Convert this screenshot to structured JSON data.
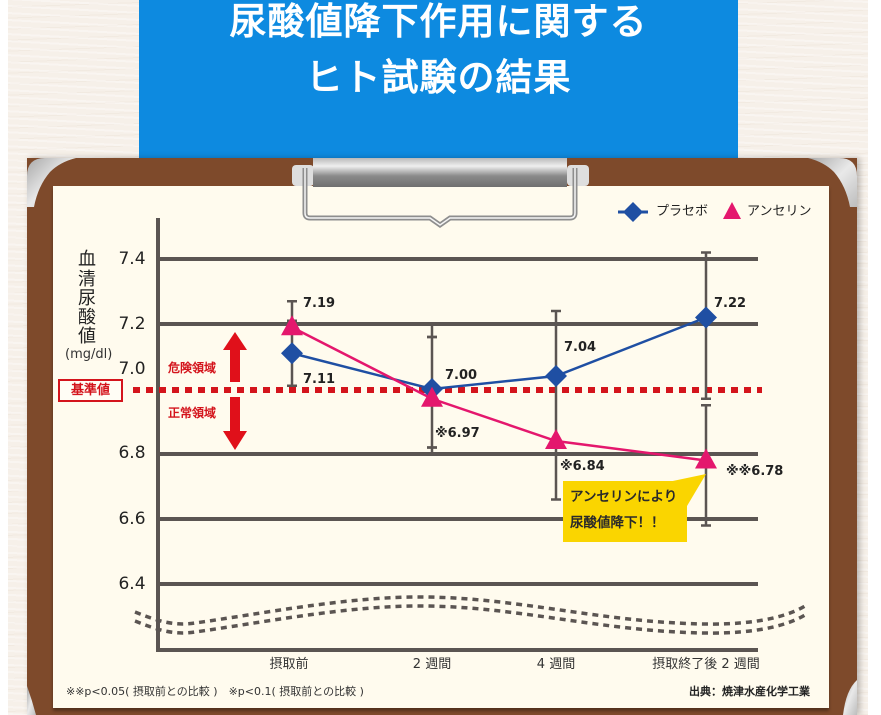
{
  "header": {
    "title_line1": "尿酸値降下作用に関する",
    "title_line2": "ヒト試験の結果"
  },
  "legend": {
    "items": [
      {
        "label": "プラセボ",
        "marker": "diamond",
        "color": "#1f4fa3"
      },
      {
        "label": "アンセリン",
        "marker": "triangle",
        "color": "#e4176d"
      }
    ]
  },
  "yaxis": {
    "title_chars": [
      "血",
      "清",
      "尿",
      "酸",
      "値"
    ],
    "unit": "(mg/dl)",
    "tick_labels": [
      "7.4",
      "7.2",
      "7.0",
      "6.8",
      "6.6",
      "6.4"
    ]
  },
  "baseline": {
    "label": "基準値",
    "color": "#d4141c"
  },
  "zones": {
    "danger": "危険領域",
    "normal": "正常領域",
    "arrow_color": "#e0101a"
  },
  "callout": {
    "line1": "アンセリンにより",
    "line2": "尿酸値降下！！",
    "color": "#fad500"
  },
  "footnote": {
    "significance": "※※p<0.05( 摂取前との比較 )　※p<0.1( 摂取前との比較 )",
    "source": "出典：焼津水産化学工業"
  },
  "chart_data": {
    "type": "line",
    "title": "尿酸値降下作用に関するヒト試験の結果",
    "xlabel": "",
    "ylabel": "血清尿酸値 (mg/dl)",
    "categories": [
      "摂取前",
      "2 週間",
      "4 週間",
      "摂取終了後 2 週間"
    ],
    "series": [
      {
        "name": "プラセボ",
        "marker": "diamond",
        "color": "#1f4fa3",
        "values": [
          7.11,
          7.0,
          7.04,
          7.22
        ],
        "labels": [
          "7.11",
          "7.00",
          "7.04",
          "7.22"
        ]
      },
      {
        "name": "アンセリン",
        "marker": "triangle",
        "color": "#e4176d",
        "values": [
          7.19,
          6.97,
          6.84,
          6.78
        ],
        "labels": [
          "7.19",
          "※6.97",
          "※6.84",
          "※※6.78"
        ]
      }
    ],
    "error_bars": [
      {
        "category": "摂取前",
        "whiskers": [
          [
            7.27,
            7.21
          ],
          [
            7.21,
            7.01
          ]
        ]
      },
      {
        "category": "2 週間",
        "whiskers": [
          [
            7.2,
            7.16
          ],
          [
            7.16,
            6.82
          ],
          [
            6.82,
            6.8
          ]
        ]
      },
      {
        "category": "4 週間",
        "whiskers": [
          [
            7.24,
            6.66
          ]
        ]
      },
      {
        "category": "摂取終了後 2 週間",
        "whiskers": [
          [
            7.42,
            6.97
          ],
          [
            6.95,
            6.58
          ]
        ]
      }
    ],
    "ylim": [
      6.4,
      7.4
    ],
    "yticks": [
      7.4,
      7.2,
      7.0,
      6.8,
      6.6,
      6.4
    ],
    "grid": true,
    "axis_break": true,
    "reference_line": {
      "value": 7.0,
      "label": "基準値",
      "style": "dotted",
      "color": "#d4141c"
    },
    "zones": {
      "above": "危険領域",
      "below": "正常領域"
    },
    "legend_position": "top-right",
    "annotations": [
      {
        "text": "アンセリンにより尿酸値降下！！",
        "points_to": "アンセリン / 摂取終了後 2 週間"
      },
      {
        "text": "※※p<0.05( 摂取前との比較 )"
      },
      {
        "text": "※p<0.1( 摂取前との比較 )"
      },
      {
        "text": "出典：焼津水産化学工業"
      }
    ]
  }
}
